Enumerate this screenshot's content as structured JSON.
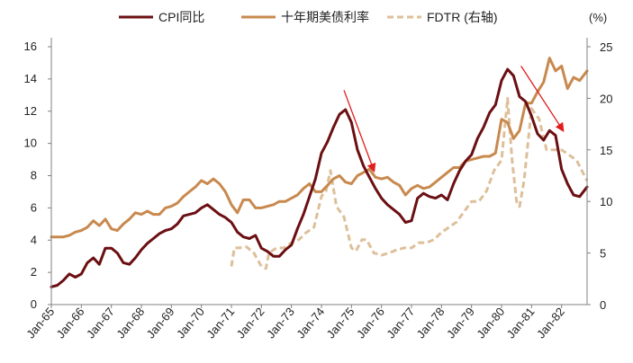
{
  "chart_data": {
    "type": "line",
    "title": "",
    "xlabel": "",
    "ylabel_left": "",
    "ylabel_right": "(%)",
    "ylim_left": [
      0,
      16
    ],
    "ylim_right": [
      0,
      25
    ],
    "yticks_left": [
      "0",
      "2",
      "4",
      "6",
      "8",
      "10",
      "12",
      "14",
      "16"
    ],
    "yticks_right": [
      "0",
      "5",
      "10",
      "15",
      "20",
      "25"
    ],
    "x_range": [
      1965.0,
      1982.85
    ],
    "x_ticks": [
      "Jan-65",
      "Jan-66",
      "Jan-67",
      "Jan-68",
      "Jan-69",
      "Jan-70",
      "Jan-71",
      "Jan-72",
      "Jan-73",
      "Jan-74",
      "Jan-75",
      "Jan-76",
      "Jan-77",
      "Jan-78",
      "Jan-79",
      "Jan-80",
      "Jan-81",
      "Jan-82"
    ],
    "grid": false,
    "legend_position": "top",
    "series": [
      {
        "name": "CPI同比",
        "axis": "left",
        "color": "#6b0f12",
        "style": "solid",
        "x": [
          1965.0,
          1965.2,
          1965.4,
          1965.6,
          1965.8,
          1966.0,
          1966.2,
          1966.4,
          1966.6,
          1966.8,
          1967.0,
          1967.2,
          1967.4,
          1967.6,
          1967.8,
          1968.0,
          1968.2,
          1968.4,
          1968.6,
          1968.8,
          1969.0,
          1969.2,
          1969.4,
          1969.6,
          1969.8,
          1970.0,
          1970.2,
          1970.4,
          1970.6,
          1970.8,
          1971.0,
          1971.2,
          1971.4,
          1971.6,
          1971.8,
          1972.0,
          1972.2,
          1972.4,
          1972.6,
          1972.8,
          1973.0,
          1973.2,
          1973.4,
          1973.6,
          1973.8,
          1974.0,
          1974.2,
          1974.4,
          1974.6,
          1974.8,
          1975.0,
          1975.2,
          1975.4,
          1975.6,
          1975.8,
          1976.0,
          1976.2,
          1976.4,
          1976.6,
          1976.8,
          1977.0,
          1977.2,
          1977.4,
          1977.6,
          1977.8,
          1978.0,
          1978.2,
          1978.4,
          1978.6,
          1978.8,
          1979.0,
          1979.2,
          1979.4,
          1979.6,
          1979.8,
          1980.0,
          1980.2,
          1980.4,
          1980.6,
          1980.8,
          1981.0,
          1981.2,
          1981.4,
          1981.6,
          1981.8,
          1982.0,
          1982.2,
          1982.4,
          1982.6,
          1982.85
        ],
        "y": [
          1.1,
          1.2,
          1.5,
          1.9,
          1.7,
          1.9,
          2.6,
          2.9,
          2.5,
          3.5,
          3.5,
          3.2,
          2.6,
          2.5,
          2.9,
          3.4,
          3.8,
          4.1,
          4.4,
          4.6,
          4.7,
          5.0,
          5.5,
          5.6,
          5.7,
          6.0,
          6.2,
          5.9,
          5.6,
          5.4,
          5.1,
          4.5,
          4.2,
          4.1,
          4.3,
          3.5,
          3.3,
          3.0,
          3.0,
          3.4,
          3.7,
          4.7,
          5.6,
          6.7,
          7.8,
          9.4,
          10.1,
          11.0,
          11.8,
          12.1,
          11.3,
          9.6,
          8.6,
          7.9,
          7.2,
          6.6,
          6.2,
          5.9,
          5.6,
          5.1,
          5.2,
          6.6,
          6.9,
          6.7,
          6.6,
          6.8,
          6.5,
          7.5,
          8.3,
          8.9,
          9.3,
          10.3,
          11.0,
          11.9,
          12.4,
          13.9,
          14.6,
          14.2,
          12.9,
          12.6,
          11.7,
          10.6,
          10.2,
          10.8,
          10.5,
          8.4,
          7.5,
          6.8,
          6.7,
          7.3
        ]
      },
      {
        "name": "十年期美债利率",
        "axis": "left",
        "color": "#c8894e",
        "style": "solid",
        "x": [
          1965.0,
          1965.2,
          1965.4,
          1965.6,
          1965.8,
          1966.0,
          1966.2,
          1966.4,
          1966.6,
          1966.8,
          1967.0,
          1967.2,
          1967.4,
          1967.6,
          1967.8,
          1968.0,
          1968.2,
          1968.4,
          1968.6,
          1968.8,
          1969.0,
          1969.2,
          1969.4,
          1969.6,
          1969.8,
          1970.0,
          1970.2,
          1970.4,
          1970.6,
          1970.8,
          1971.0,
          1971.2,
          1971.4,
          1971.6,
          1971.8,
          1972.0,
          1972.2,
          1972.4,
          1972.6,
          1972.8,
          1973.0,
          1973.2,
          1973.4,
          1973.6,
          1973.8,
          1974.0,
          1974.2,
          1974.4,
          1974.6,
          1974.8,
          1975.0,
          1975.2,
          1975.4,
          1975.6,
          1975.8,
          1976.0,
          1976.2,
          1976.4,
          1976.6,
          1976.8,
          1977.0,
          1977.2,
          1977.4,
          1977.6,
          1977.8,
          1978.0,
          1978.2,
          1978.4,
          1978.6,
          1978.8,
          1979.0,
          1979.2,
          1979.4,
          1979.6,
          1979.8,
          1980.0,
          1980.2,
          1980.4,
          1980.6,
          1980.8,
          1981.0,
          1981.2,
          1981.4,
          1981.6,
          1981.8,
          1982.0,
          1982.2,
          1982.4,
          1982.6,
          1982.85
        ],
        "y": [
          4.2,
          4.2,
          4.2,
          4.3,
          4.5,
          4.6,
          4.8,
          5.2,
          4.9,
          5.3,
          4.7,
          4.6,
          5.0,
          5.3,
          5.7,
          5.6,
          5.8,
          5.6,
          5.6,
          6.0,
          6.1,
          6.3,
          6.7,
          7.0,
          7.3,
          7.7,
          7.5,
          7.8,
          7.5,
          7.0,
          6.2,
          5.7,
          6.5,
          6.5,
          6.0,
          6.0,
          6.1,
          6.2,
          6.4,
          6.4,
          6.6,
          6.8,
          7.2,
          7.5,
          7.0,
          7.0,
          7.4,
          7.8,
          8.0,
          7.6,
          7.5,
          8.0,
          8.2,
          8.4,
          7.9,
          7.8,
          7.9,
          7.6,
          7.4,
          6.8,
          7.2,
          7.4,
          7.2,
          7.3,
          7.6,
          7.9,
          8.2,
          8.5,
          8.5,
          8.9,
          9.0,
          9.1,
          9.2,
          9.2,
          9.4,
          11.5,
          11.3,
          10.3,
          10.8,
          12.5,
          12.5,
          13.2,
          13.8,
          15.3,
          14.5,
          14.8,
          13.4,
          14.1,
          13.9,
          14.5
        ]
      },
      {
        "name": "FDTR (右轴)",
        "axis": "right",
        "color": "#ddc09a",
        "style": "dashed",
        "x": [
          1971.0,
          1971.1,
          1971.25,
          1971.5,
          1971.75,
          1972.0,
          1972.15,
          1972.25,
          1972.5,
          1972.75,
          1973.0,
          1973.25,
          1973.5,
          1973.75,
          1974.0,
          1974.15,
          1974.3,
          1974.5,
          1974.75,
          1975.0,
          1975.15,
          1975.35,
          1975.5,
          1975.75,
          1976.0,
          1976.25,
          1976.5,
          1976.75,
          1977.0,
          1977.25,
          1977.5,
          1977.75,
          1978.0,
          1978.25,
          1978.5,
          1978.75,
          1979.0,
          1979.25,
          1979.5,
          1979.75,
          1980.0,
          1980.2,
          1980.35,
          1980.5,
          1980.6,
          1980.75,
          1981.0,
          1981.25,
          1981.5,
          1981.75,
          1982.0,
          1982.25,
          1982.5,
          1982.85
        ],
        "y": [
          3.7,
          5.5,
          5.5,
          5.6,
          5.0,
          3.7,
          3.5,
          5.0,
          5.5,
          5.5,
          6.0,
          6.3,
          7.0,
          7.5,
          10.5,
          11.0,
          13.0,
          9.5,
          8.5,
          5.5,
          5.2,
          6.3,
          6.3,
          5.0,
          4.8,
          5.0,
          5.3,
          5.5,
          5.5,
          6.0,
          6.0,
          6.3,
          7.0,
          7.5,
          8.0,
          9.0,
          10.0,
          10.0,
          11.0,
          13.0,
          14.0,
          20.0,
          14.0,
          10.0,
          9.5,
          12.0,
          19.0,
          18.0,
          15.0,
          15.0,
          15.0,
          14.5,
          14.0,
          12.0
        ]
      }
    ],
    "arrows": [
      {
        "from": [
          1974.75,
          13.3
        ],
        "to": [
          1975.75,
          8.3
        ],
        "color": "#e11d1d"
      },
      {
        "from": [
          1980.65,
          14.8
        ],
        "to": [
          1982.05,
          10.8
        ],
        "color": "#e11d1d"
      }
    ]
  }
}
